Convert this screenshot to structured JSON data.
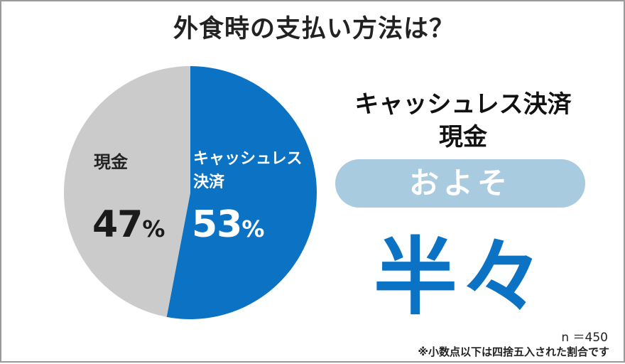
{
  "chart_data": {
    "type": "pie",
    "title": "外食時の支払い方法は？",
    "slices": [
      {
        "label": "キャッシュレス決済",
        "label_lines": [
          "キャッシュレス",
          "決済"
        ],
        "value": 53,
        "color": "#0b72c4"
      },
      {
        "label": "現金",
        "value": 47,
        "color": "#cbcbcb"
      }
    ],
    "pct_symbol": "%"
  },
  "headline": {
    "line1": "キャッシュレス決済",
    "line2": "現金",
    "pill_text": "およそ",
    "big_text": "半々"
  },
  "notes": {
    "sample": "n ＝450",
    "rounding": "※小数点以下は四捨五入された割合です"
  }
}
